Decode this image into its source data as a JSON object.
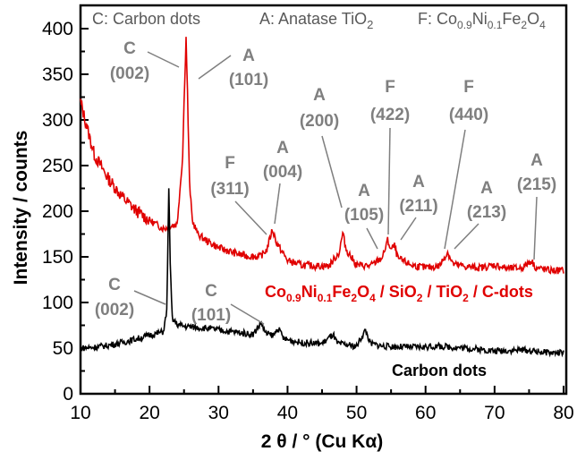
{
  "chart_data": {
    "type": "line",
    "title": "",
    "xlabel": "2 θ / ° (Cu Kα)",
    "ylabel": "Intensity / counts",
    "xlim": [
      10,
      80
    ],
    "ylim": [
      0,
      420
    ],
    "xticks": [
      "10",
      "20",
      "30",
      "40",
      "50",
      "60",
      "70",
      "80"
    ],
    "yticks": [
      "0",
      "50",
      "100",
      "150",
      "200",
      "250",
      "300",
      "350",
      "400"
    ],
    "grid": false,
    "legend_header": {
      "c": "C: Carbon dots",
      "a_main": "A: Anatase TiO",
      "a_sub": "2",
      "f_parts": [
        [
          "F: Co",
          ""
        ],
        [
          "0.9",
          "sub"
        ],
        [
          "Ni",
          ""
        ],
        [
          "0.1",
          "sub"
        ],
        [
          "Fe",
          ""
        ],
        [
          "2",
          "sub"
        ],
        [
          "O",
          ""
        ],
        [
          "4",
          "sub"
        ]
      ]
    },
    "series": [
      {
        "name": "Co0.9Ni0.1Fe2O4 / SiO2 / TiO2 / C-dots",
        "label_parts": [
          [
            "Co",
            ""
          ],
          [
            "0.9",
            "sub"
          ],
          [
            "Ni",
            ""
          ],
          [
            "0.1",
            "sub"
          ],
          [
            "Fe",
            ""
          ],
          [
            "2",
            "sub"
          ],
          [
            "O",
            ""
          ],
          [
            "4",
            "sub"
          ],
          [
            " / SiO",
            ""
          ],
          [
            "2",
            "sub"
          ],
          [
            " / TiO",
            ""
          ],
          [
            "2",
            "sub"
          ],
          [
            " / C-dots",
            ""
          ]
        ],
        "color": "#e00000",
        "x": [
          10,
          11,
          12,
          14,
          16,
          18,
          20,
          22,
          24,
          24.8,
          25.1,
          25.3,
          25.5,
          25.8,
          26.2,
          27,
          28,
          30,
          32,
          34,
          36,
          37,
          37.8,
          38.5,
          40,
          42,
          44,
          46,
          47.5,
          48,
          48.5,
          50,
          52,
          53.8,
          54.5,
          55,
          55.5,
          56,
          58,
          60,
          62,
          62.8,
          63.2,
          64,
          66,
          68,
          70,
          72,
          74,
          75.3,
          76,
          78,
          80
        ],
        "y": [
          320,
          290,
          262,
          236,
          216,
          201,
          190,
          181,
          186,
          260,
          345,
          390,
          330,
          230,
          190,
          175,
          169,
          160,
          155,
          151,
          150,
          158,
          180,
          164,
          146,
          141,
          140,
          140,
          155,
          176,
          158,
          141,
          140,
          150,
          168,
          158,
          162,
          148,
          141,
          138,
          140,
          150,
          155,
          142,
          139,
          138,
          141,
          137,
          138,
          146,
          138,
          135,
          135
        ]
      },
      {
        "name": "Carbon dots",
        "color": "#000000",
        "x": [
          10,
          12,
          14,
          16,
          18,
          20,
          22,
          22.5,
          22.8,
          23.0,
          23.3,
          24,
          25,
          28,
          30,
          33,
          35,
          36.2,
          36.8,
          38,
          38.6,
          39.5,
          42,
          45,
          46.6,
          47.2,
          50,
          51.3,
          52,
          54,
          58,
          62,
          66,
          70,
          74,
          78,
          80
        ],
        "y": [
          50,
          51,
          53,
          56,
          60,
          64,
          68,
          90,
          228,
          140,
          82,
          76,
          74,
          72,
          70,
          67,
          65,
          78,
          66,
          64,
          72,
          60,
          56,
          55,
          65,
          55,
          52,
          70,
          55,
          52,
          51,
          52,
          50,
          47,
          48,
          45,
          45
        ]
      }
    ],
    "annotations": [
      {
        "phase": "C",
        "hkl": "(002)"
      },
      {
        "phase": "A",
        "hkl": "(101)"
      },
      {
        "phase": "A",
        "hkl": "(200)"
      },
      {
        "phase": "F",
        "hkl": "(422)"
      },
      {
        "phase": "F",
        "hkl": "(440)"
      },
      {
        "phase": "F",
        "hkl": "(311)"
      },
      {
        "phase": "A",
        "hkl": "(004)"
      },
      {
        "phase": "A",
        "hkl": "(105)"
      },
      {
        "phase": "A",
        "hkl": "(211)"
      },
      {
        "phase": "A",
        "hkl": "(213)"
      },
      {
        "phase": "A",
        "hkl": "(215)"
      },
      {
        "phase": "C",
        "hkl": "(002)"
      },
      {
        "phase": "C",
        "hkl": "(101)"
      }
    ]
  }
}
